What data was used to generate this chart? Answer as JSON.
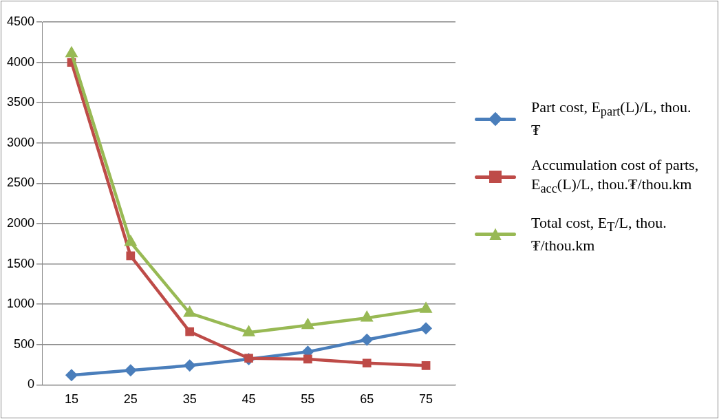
{
  "chart_data": {
    "type": "line",
    "categories": [
      "15",
      "25",
      "35",
      "45",
      "55",
      "65",
      "75"
    ],
    "series": [
      {
        "name": "Part cost, E$_{part}$(L)/L, thou. ₮",
        "color": "#4a7ebb",
        "marker": "diamond",
        "values": [
          120,
          180,
          240,
          320,
          410,
          560,
          700
        ]
      },
      {
        "name": "Accumulation cost of parts, E$_{acc}$(L)/L, thou.₮/thou.km",
        "color": "#be4b48",
        "marker": "square",
        "values": [
          4000,
          1600,
          660,
          330,
          320,
          270,
          240
        ]
      },
      {
        "name": "Total cost, E$_{T}$/L, thou.₮/thou.km",
        "color": "#98b954",
        "marker": "triangle",
        "values": [
          4110,
          1770,
          890,
          650,
          740,
          830,
          940
        ]
      }
    ],
    "ylim": [
      0,
      4500
    ],
    "yticks": [
      0,
      500,
      1000,
      1500,
      2000,
      2500,
      3000,
      3500,
      4000,
      4500
    ],
    "grid": "y",
    "legend": "right"
  }
}
